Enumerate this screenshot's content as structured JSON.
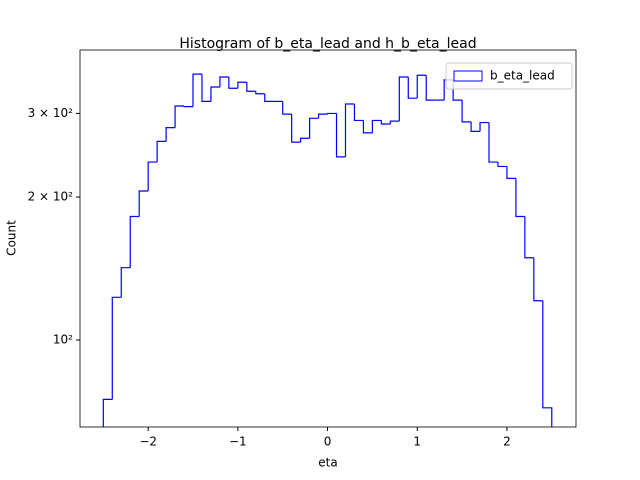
{
  "chart_data": {
    "type": "histogram",
    "title": "Histogram of b_eta_lead and h_b_eta_lead",
    "xlabel": "eta",
    "ylabel": "Count",
    "bins": [
      -2.5,
      -2.4,
      -2.3,
      -2.2,
      -2.1,
      -2.0,
      -1.9,
      -1.8,
      -1.7,
      -1.6,
      -1.5,
      -1.4,
      -1.3,
      -1.2,
      -1.1,
      -1.0,
      -0.9,
      -0.8,
      -0.7,
      -0.6,
      -0.5,
      -0.4,
      -0.3,
      -0.2,
      -0.1,
      0.0,
      0.1,
      0.2,
      0.3,
      0.4,
      0.5,
      0.6,
      0.7,
      0.8,
      0.9,
      1.0,
      1.1,
      1.2,
      1.3,
      1.4,
      1.5,
      1.6,
      1.7,
      1.8,
      1.9,
      2.0,
      2.1,
      2.2,
      2.3,
      2.4,
      2.5
    ],
    "series": [
      {
        "name": "b_eta_lead",
        "color": "#0000ff",
        "values": [
          75,
          123,
          142,
          182,
          206,
          237,
          262,
          280,
          311,
          310,
          363,
          318,
          341,
          358,
          339,
          349,
          334,
          330,
          318,
          318,
          299,
          261,
          266,
          293,
          299,
          300,
          243,
          314,
          290,
          273,
          290,
          285,
          289,
          358,
          323,
          361,
          320,
          320,
          353,
          320,
          288,
          275,
          287,
          237,
          232,
          219,
          182,
          149,
          121,
          72
        ]
      }
    ],
    "xlim": [
      -2.76,
      2.77
    ],
    "xticks": [
      {
        "value": -2,
        "label": "−2"
      },
      {
        "value": -1,
        "label": "−1"
      },
      0,
      1,
      2
    ],
    "ylim": [
      65.6,
      408
    ],
    "yticks": [
      {
        "value": 100,
        "label": "10²"
      },
      {
        "value": 200,
        "label": "2 × 10²"
      },
      {
        "value": 300,
        "label": "3 × 10²"
      }
    ],
    "log_y": true,
    "legend": "upper right"
  }
}
